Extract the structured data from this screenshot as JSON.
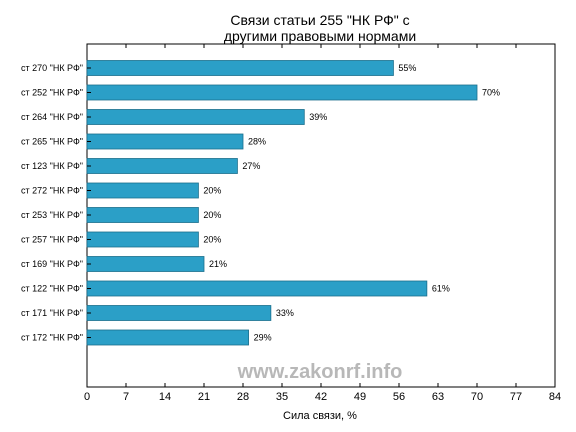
{
  "chart_data": {
    "type": "bar",
    "orientation": "horizontal",
    "title_lines": [
      "Связи статьи 255 \"НК РФ\" с",
      "другими правовыми нормами"
    ],
    "xlabel": "Сила связи, %",
    "ylabel": "",
    "xlim": [
      0,
      84
    ],
    "xticks": [
      0,
      7,
      14,
      21,
      28,
      35,
      42,
      49,
      56,
      63,
      70,
      77,
      84
    ],
    "categories": [
      "ст 270 \"НК РФ\"",
      "ст 252 \"НК РФ\"",
      "ст 264 \"НК РФ\"",
      "ст 265 \"НК РФ\"",
      "ст 123 \"НК РФ\"",
      "ст 272 \"НК РФ\"",
      "ст 253 \"НК РФ\"",
      "ст 257 \"НК РФ\"",
      "ст 169 \"НК РФ\"",
      "ст 122 \"НК РФ\"",
      "ст 171 \"НК РФ\"",
      "ст 172 \"НК РФ\""
    ],
    "values": [
      55,
      70,
      39,
      28,
      27,
      20,
      20,
      20,
      21,
      61,
      33,
      29
    ],
    "value_labels": [
      "55%",
      "70%",
      "39%",
      "28%",
      "27%",
      "20%",
      "20%",
      "20%",
      "21%",
      "61%",
      "33%",
      "29%"
    ],
    "bar_color": "#2b9fc7",
    "grid": false,
    "legend": "none"
  },
  "watermark": "www.zakonrf.info"
}
